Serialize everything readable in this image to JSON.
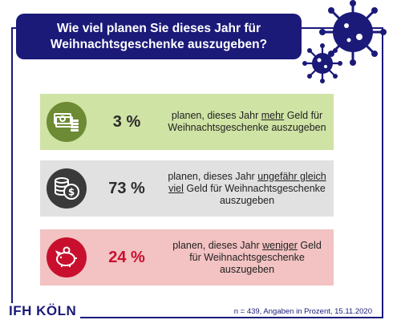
{
  "title": {
    "line1": "Wie viel planen Sie dieses Jahr für",
    "line2": "Weihnachtsgeschenke auszugeben?"
  },
  "chart_data": {
    "type": "table",
    "rows": [
      {
        "value": 3,
        "label": "3 %",
        "text_before": "planen, dieses Jahr ",
        "text_emph": "mehr",
        "text_after": " Geld für Weihnachtsgeschenke auszugeben",
        "bg_color": "#cfe3a4",
        "icon_color": "#6d8a34",
        "value_color": "#2b2b2b",
        "icon": "money-stack-icon"
      },
      {
        "value": 73,
        "label": "73 %",
        "text_before": "planen, dieses Jahr ",
        "text_emph": "ungefähr gleich viel",
        "text_after": " Geld für Weihnachtsgeschenke auszugeben",
        "bg_color": "#e1e1e1",
        "icon_color": "#3a3a3a",
        "value_color": "#2b2b2b",
        "icon": "coins-icon"
      },
      {
        "value": 24,
        "label": "24 %",
        "text_before": "planen, dieses Jahr ",
        "text_emph": "weniger",
        "text_after": " Geld für Weihnachtsgeschenke auszugeben",
        "bg_color": "#f3c2c2",
        "icon_color": "#c8102e",
        "value_color": "#c8102e",
        "icon": "piggy-bank-icon"
      }
    ]
  },
  "logo": "IFH KÖLN",
  "note": "n = 439, Angaben in Prozent, 15.11.2020",
  "colors": {
    "brand": "#1b1a79",
    "virus": "#1b1a79"
  }
}
